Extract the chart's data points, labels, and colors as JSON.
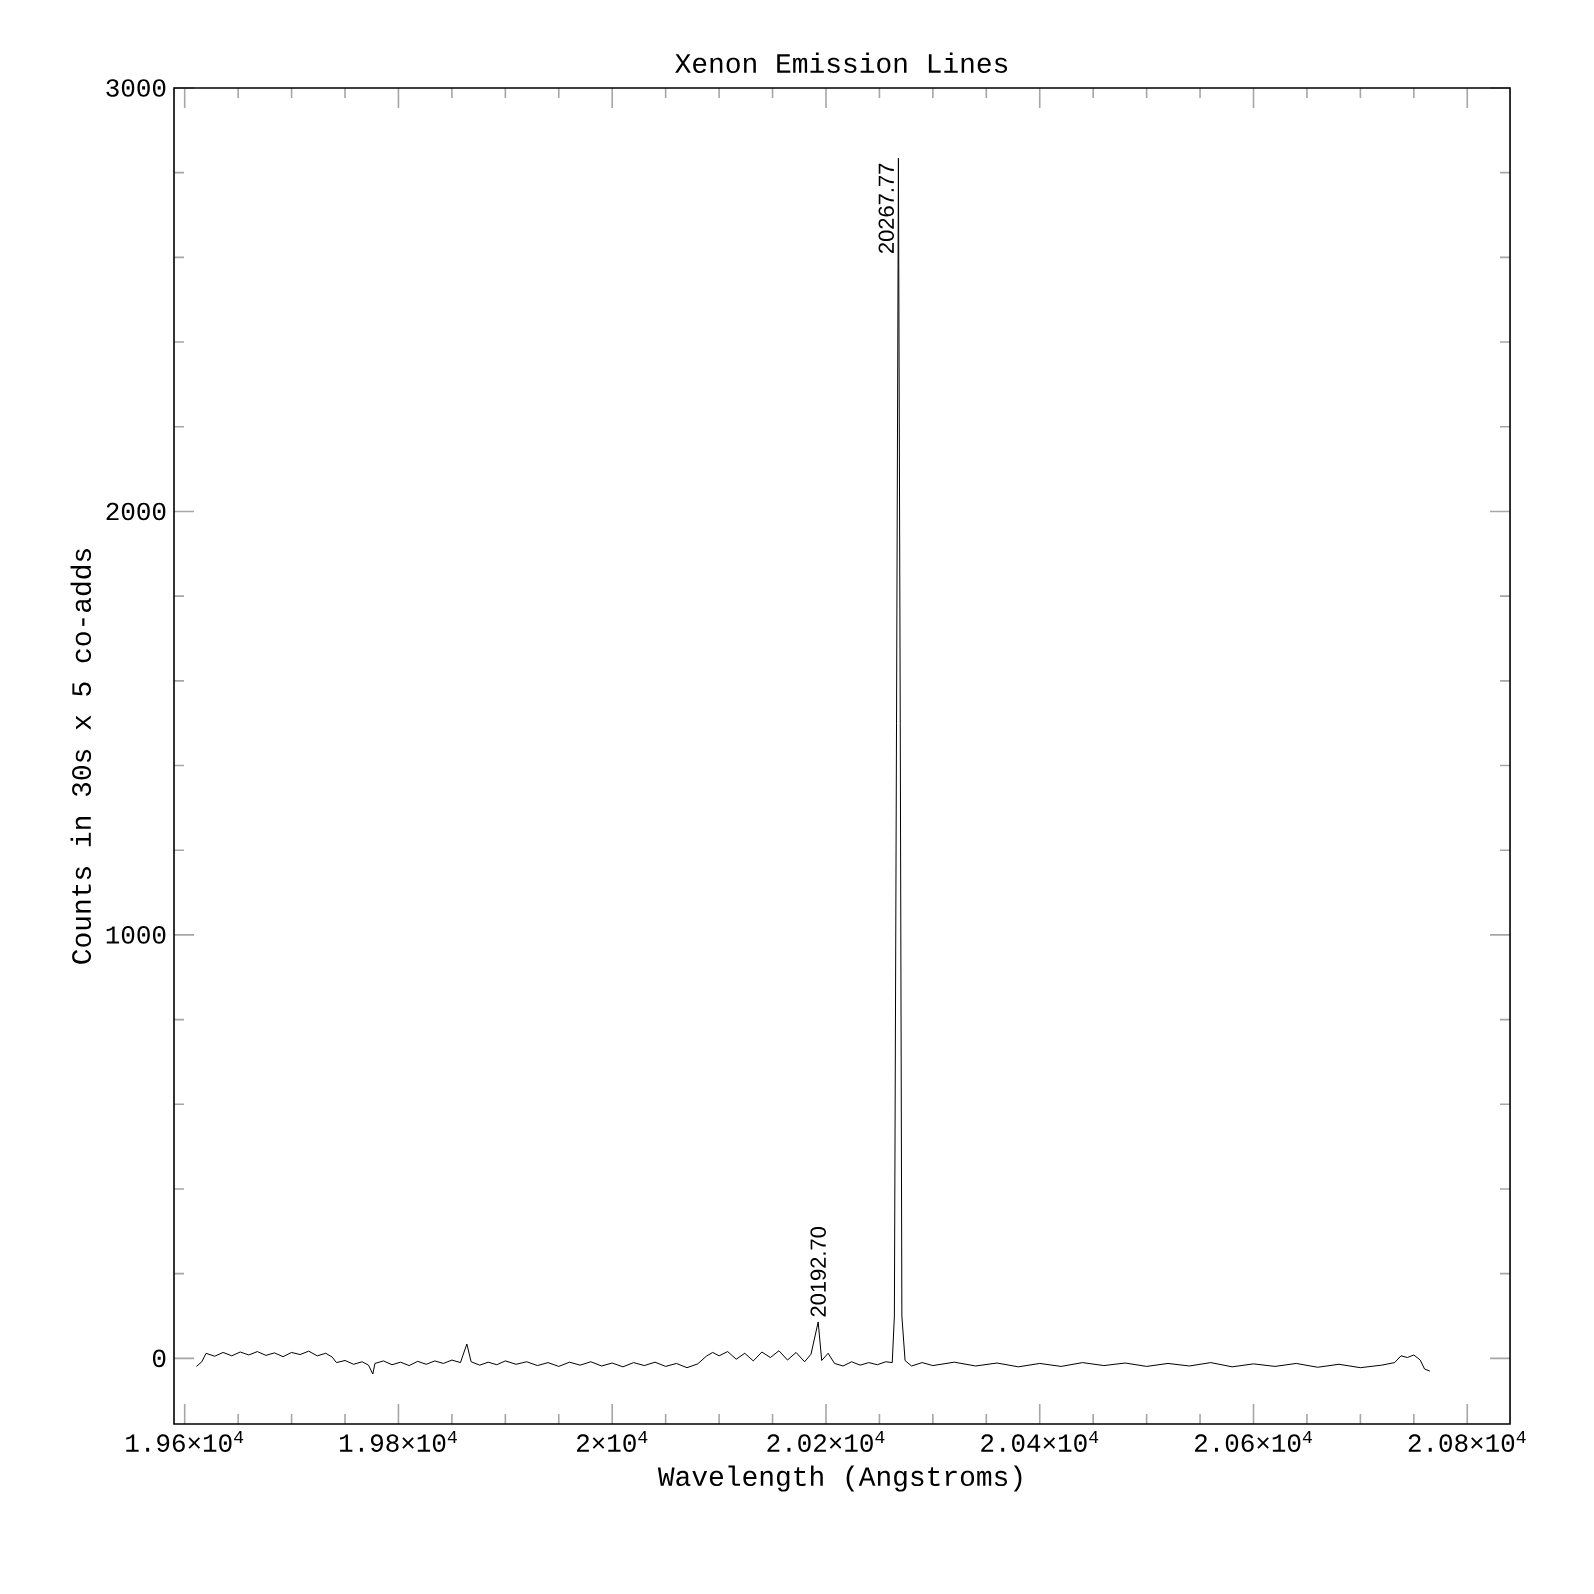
{
  "chart_data": {
    "type": "line",
    "title": "Xenon Emission Lines",
    "xlabel": "Wavelength (Angstroms)",
    "ylabel": "Counts in 30s x 5 co-adds",
    "xlim": [
      19590,
      20840
    ],
    "ylim": [
      -155,
      3000
    ],
    "xticks": [
      {
        "value": 19600,
        "label": "1.96×10$^{4}$"
      },
      {
        "value": 19800,
        "label": "1.98×10$^{4}$"
      },
      {
        "value": 20000,
        "label": "2×10$^{4}$"
      },
      {
        "value": 20200,
        "label": "2.02×10$^{4}$"
      },
      {
        "value": 20400,
        "label": "2.04×10$^{4}$"
      },
      {
        "value": 20600,
        "label": "2.06×10$^{4}$"
      },
      {
        "value": 20800,
        "label": "2.08×10$^{4}$"
      }
    ],
    "yticks": [
      0,
      1000,
      2000,
      3000
    ],
    "annotations": [
      {
        "text": "20267.77",
        "x": 20267.77,
        "y": 2834
      },
      {
        "text": "20192.70",
        "x": 20192.7,
        "y": 86
      }
    ],
    "series": [
      {
        "color": "#000000",
        "x": [
          19611,
          19616,
          19620,
          19628,
          19636,
          19644,
          19652,
          19660,
          19668,
          19676,
          19684,
          19692,
          19700,
          19708,
          19716,
          19724,
          19732,
          19738,
          19742,
          19750,
          19758,
          19766,
          19772,
          19776,
          19778,
          19786,
          19794,
          19802,
          19810,
          19818,
          19826,
          19834,
          19842,
          19850,
          19858,
          19864,
          19868,
          19876,
          19884,
          19892,
          19900,
          19910,
          19920,
          19930,
          19940,
          19950,
          19960,
          19970,
          19980,
          19990,
          20000,
          20010,
          20020,
          20030,
          20040,
          20050,
          20060,
          20070,
          20080,
          20088,
          20094,
          20100,
          20108,
          20116,
          20124,
          20132,
          20140,
          20148,
          20156,
          20164,
          20172,
          20180,
          20186,
          20192.7,
          20196,
          20202,
          20208,
          20216,
          20224,
          20232,
          20240,
          20248,
          20256,
          20262,
          20264,
          20266,
          20267.77,
          20269.5,
          20271,
          20274,
          20280,
          20290,
          20300,
          20320,
          20340,
          20360,
          20380,
          20400,
          20420,
          20440,
          20460,
          20480,
          20500,
          20520,
          20540,
          20560,
          20580,
          20600,
          20620,
          20640,
          20660,
          20680,
          20700,
          20720,
          20732,
          20738,
          20744,
          20750,
          20756,
          20760,
          20765
        ],
        "values": [
          -19,
          -8,
          12,
          5,
          14,
          6,
          15,
          8,
          16,
          7,
          13,
          4,
          14,
          9,
          17,
          6,
          12,
          3,
          -10,
          -5,
          -14,
          -8,
          -16,
          -37,
          -12,
          -6,
          -15,
          -9,
          -17,
          -7,
          -14,
          -6,
          -12,
          -4,
          -10,
          34,
          -8,
          -16,
          -9,
          -15,
          -6,
          -14,
          -8,
          -17,
          -10,
          -19,
          -9,
          -16,
          -8,
          -18,
          -11,
          -20,
          -10,
          -17,
          -9,
          -19,
          -12,
          -22,
          -13,
          5,
          14,
          6,
          16,
          -2,
          12,
          -6,
          15,
          2,
          18,
          -4,
          14,
          -8,
          10,
          86,
          -5,
          12,
          -12,
          -18,
          -8,
          -16,
          -10,
          -15,
          -8,
          -10,
          100,
          1500,
          2834,
          1500,
          100,
          -5,
          -18,
          -10,
          -17,
          -9,
          -18,
          -11,
          -20,
          -12,
          -19,
          -10,
          -17,
          -11,
          -19,
          -12,
          -18,
          -10,
          -20,
          -13,
          -19,
          -12,
          -21,
          -14,
          -22,
          -16,
          -10,
          6,
          2,
          8,
          -4,
          -25,
          -30
        ]
      }
    ]
  }
}
